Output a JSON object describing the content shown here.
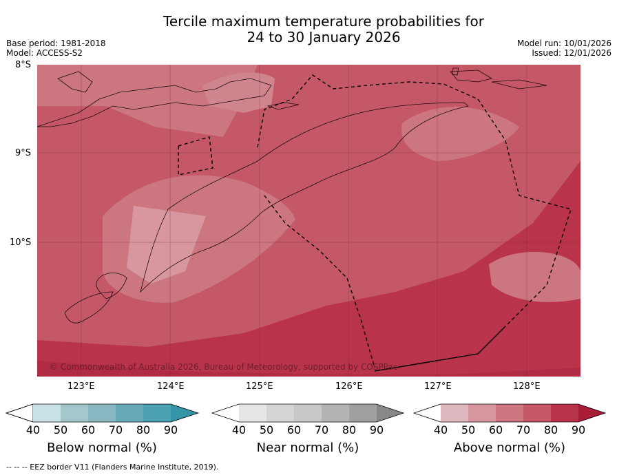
{
  "chart_data": {
    "type": "heatmap",
    "title_line1": "Tercile maximum temperature probabilities for",
    "title_line2": "24 to 30 January 2026",
    "base_period": "Base period: 1981-2018",
    "model": "Model: ACCESS-S2",
    "model_run": "Model run: 10/01/2026",
    "issued": "Issued: 12/01/2026",
    "x_ticks": [
      "123°E",
      "124°E",
      "125°E",
      "126°E",
      "127°E",
      "128°E"
    ],
    "y_ticks": [
      "8°S",
      "9°S",
      "10°S"
    ],
    "lon_range": [
      122.5,
      128.6
    ],
    "lat_range": [
      -11.5,
      -8.0
    ],
    "copyright": "© Commonwealth of Australia 2026, Bureau of Meteorology, supported by COSPPac",
    "footer": "--  --  -- EEZ border V11 (Flanders Marine Institute, 2019).",
    "colorbars": [
      {
        "name": "Below normal (%)",
        "ticks": [
          "40",
          "50",
          "60",
          "70",
          "80",
          "90"
        ],
        "colors": [
          "#c8e2e8",
          "#a5c7cc",
          "#88b8c2",
          "#68a9b6",
          "#4aa0b0",
          "#3296a8"
        ]
      },
      {
        "name": "Near normal (%)",
        "ticks": [
          "40",
          "50",
          "60",
          "70",
          "80",
          "90"
        ],
        "colors": [
          "#e6e6e6",
          "#d6d6d6",
          "#c8c8c8",
          "#b4b4b4",
          "#a0a0a0",
          "#888888"
        ]
      },
      {
        "name": "Above normal (%)",
        "ticks": [
          "40",
          "50",
          "60",
          "70",
          "80",
          "90"
        ],
        "colors": [
          "#e0b8c0",
          "#d8969e",
          "#cc7680",
          "#c45866",
          "#b9344a",
          "#a81c38"
        ]
      }
    ],
    "field_levels": [
      {
        "band": "60-70",
        "color": "#cc7680"
      },
      {
        "band": "70-80",
        "color": "#c45866"
      },
      {
        "band": "80-90",
        "color": "#b9344a"
      },
      {
        "band": "90+",
        "color": "#a81c38"
      }
    ]
  }
}
